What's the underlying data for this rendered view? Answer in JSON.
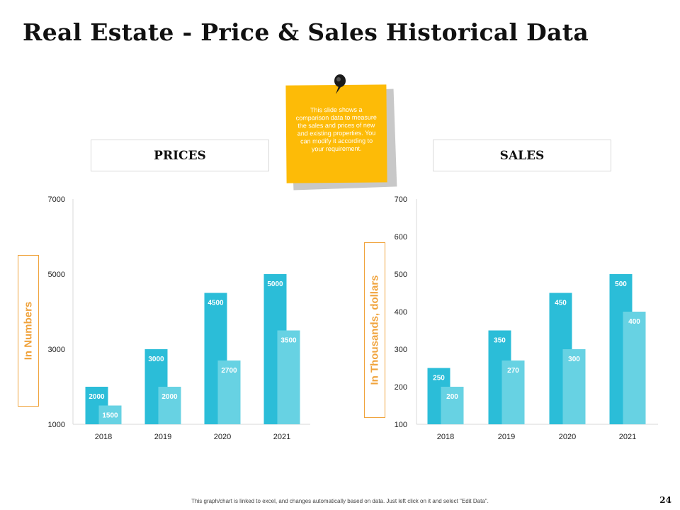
{
  "title": "Real Estate - Price & Sales Historical Data",
  "labels": {
    "prices": "PRICES",
    "sales": "SALES"
  },
  "note": {
    "text": "This slide shows a comparison data to measure the sales and prices of new and existing properties. You can modify it according to your requirement."
  },
  "footer": "This graph/chart is linked to excel, and changes automatically based on data. Just left click on it and select \"Edit Data\".",
  "page_number": "24",
  "colors": {
    "series_dark": "#2bbdd8",
    "series_light": "#67d2e3",
    "axis_title": "#f0a33c",
    "note": "#fdbb07"
  },
  "chart_data": [
    {
      "type": "bar",
      "title": "PRICES",
      "categories": [
        "2018",
        "2019",
        "2020",
        "2021"
      ],
      "series": [
        {
          "values": [
            2000,
            3000,
            4500,
            5000
          ]
        },
        {
          "values": [
            1500,
            2000,
            2700,
            3500
          ]
        }
      ],
      "ylabel": "In Numbers",
      "ylim": [
        1000,
        7000
      ],
      "yticks": [
        "1000",
        "3000",
        "5000",
        "7000"
      ],
      "ytick_values": [
        1000,
        3000,
        5000,
        7000
      ],
      "grid": false
    },
    {
      "type": "bar",
      "title": "SALES",
      "categories": [
        "2018",
        "2019",
        "2020",
        "2021"
      ],
      "series": [
        {
          "values": [
            250,
            350,
            450,
            500
          ]
        },
        {
          "values": [
            200,
            270,
            300,
            400
          ]
        }
      ],
      "ylabel": "In Thousands, dollars",
      "ylim": [
        100,
        700
      ],
      "yticks": [
        "100",
        "200",
        "300",
        "400",
        "500",
        "600",
        "700"
      ],
      "ytick_values": [
        100,
        200,
        300,
        400,
        500,
        600,
        700
      ],
      "grid": false
    }
  ]
}
